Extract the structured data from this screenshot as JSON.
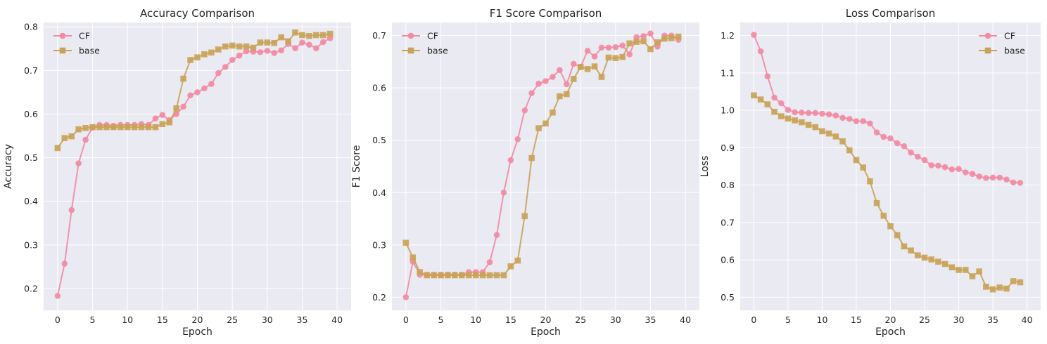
{
  "colors": {
    "background": "#eaeaf2",
    "grid": "#ffffff",
    "cf": "#f28aa2",
    "base": "#c9a257"
  },
  "chart_data": [
    {
      "type": "line",
      "title": "Accuracy Comparison",
      "xlabel": "Epoch",
      "ylabel": "Accuracy",
      "xlim": [
        -2,
        42
      ],
      "ylim": [
        0.15,
        0.81
      ],
      "xticks": [
        0,
        5,
        10,
        15,
        20,
        25,
        30,
        35,
        40
      ],
      "yticks": [
        0.2,
        0.3,
        0.4,
        0.5,
        0.6,
        0.7,
        0.8
      ],
      "grid": true,
      "legend": "top-left",
      "x": [
        0,
        1,
        2,
        3,
        4,
        5,
        6,
        7,
        8,
        9,
        10,
        11,
        12,
        13,
        14,
        15,
        16,
        17,
        18,
        19,
        20,
        21,
        22,
        23,
        24,
        25,
        26,
        27,
        28,
        29,
        30,
        31,
        32,
        33,
        34,
        35,
        36,
        37,
        38,
        39
      ],
      "series": [
        {
          "name": "CF",
          "marker": "circle",
          "values": [
            0.183,
            0.257,
            0.38,
            0.487,
            0.541,
            0.569,
            0.575,
            0.575,
            0.573,
            0.575,
            0.575,
            0.575,
            0.577,
            0.575,
            0.59,
            0.598,
            0.586,
            0.6,
            0.617,
            0.643,
            0.65,
            0.659,
            0.669,
            0.694,
            0.708,
            0.724,
            0.734,
            0.744,
            0.743,
            0.742,
            0.745,
            0.74,
            0.746,
            0.761,
            0.751,
            0.764,
            0.759,
            0.751,
            0.765,
            0.774
          ]
        },
        {
          "name": "base",
          "marker": "square",
          "values": [
            0.522,
            0.545,
            0.549,
            0.565,
            0.568,
            0.57,
            0.57,
            0.57,
            0.57,
            0.57,
            0.57,
            0.57,
            0.57,
            0.57,
            0.57,
            0.577,
            0.581,
            0.613,
            0.681,
            0.724,
            0.73,
            0.737,
            0.741,
            0.748,
            0.755,
            0.757,
            0.755,
            0.755,
            0.752,
            0.764,
            0.764,
            0.763,
            0.776,
            0.767,
            0.787,
            0.781,
            0.779,
            0.781,
            0.781,
            0.784
          ]
        }
      ]
    },
    {
      "type": "line",
      "title": "F1 Score Comparison",
      "xlabel": "Epoch",
      "ylabel": "F1 Score",
      "xlim": [
        -2,
        42
      ],
      "ylim": [
        0.175,
        0.725
      ],
      "xticks": [
        0,
        5,
        10,
        15,
        20,
        25,
        30,
        35,
        40
      ],
      "yticks": [
        0.2,
        0.3,
        0.4,
        0.5,
        0.6,
        0.7
      ],
      "grid": true,
      "legend": "top-left",
      "x": [
        0,
        1,
        2,
        3,
        4,
        5,
        6,
        7,
        8,
        9,
        10,
        11,
        12,
        13,
        14,
        15,
        16,
        17,
        18,
        19,
        20,
        21,
        22,
        23,
        24,
        25,
        26,
        27,
        28,
        29,
        30,
        31,
        32,
        33,
        34,
        35,
        36,
        37,
        38,
        39
      ],
      "series": [
        {
          "name": "CF",
          "marker": "circle",
          "values": [
            0.2,
            0.268,
            0.243,
            0.243,
            0.243,
            0.243,
            0.243,
            0.243,
            0.243,
            0.248,
            0.248,
            0.248,
            0.267,
            0.319,
            0.4,
            0.462,
            0.502,
            0.557,
            0.59,
            0.608,
            0.613,
            0.621,
            0.634,
            0.607,
            0.646,
            0.64,
            0.671,
            0.66,
            0.677,
            0.677,
            0.678,
            0.681,
            0.664,
            0.697,
            0.699,
            0.704,
            0.679,
            0.7,
            0.7,
            0.692
          ]
        },
        {
          "name": "base",
          "marker": "square",
          "values": [
            0.304,
            0.276,
            0.248,
            0.242,
            0.242,
            0.242,
            0.242,
            0.242,
            0.242,
            0.242,
            0.242,
            0.242,
            0.242,
            0.242,
            0.242,
            0.259,
            0.27,
            0.355,
            0.466,
            0.523,
            0.532,
            0.553,
            0.584,
            0.588,
            0.617,
            0.64,
            0.636,
            0.641,
            0.621,
            0.658,
            0.657,
            0.659,
            0.685,
            0.688,
            0.689,
            0.674,
            0.687,
            0.694,
            0.695,
            0.698
          ]
        }
      ]
    },
    {
      "type": "line",
      "title": "Loss Comparison",
      "xlabel": "Epoch",
      "ylabel": "Loss",
      "xlim": [
        -2,
        42
      ],
      "ylim": [
        0.465,
        1.235
      ],
      "xticks": [
        0,
        5,
        10,
        15,
        20,
        25,
        30,
        35,
        40
      ],
      "yticks": [
        0.5,
        0.6,
        0.7,
        0.8,
        0.9,
        1.0,
        1.1,
        1.2
      ],
      "grid": true,
      "legend": "top-right",
      "x": [
        0,
        1,
        2,
        3,
        4,
        5,
        6,
        7,
        8,
        9,
        10,
        11,
        12,
        13,
        14,
        15,
        16,
        17,
        18,
        19,
        20,
        21,
        22,
        23,
        24,
        25,
        26,
        27,
        28,
        29,
        30,
        31,
        32,
        33,
        34,
        35,
        36,
        37,
        38,
        39
      ],
      "series": [
        {
          "name": "CF",
          "marker": "circle",
          "values": [
            1.202,
            1.158,
            1.091,
            1.034,
            1.019,
            1.001,
            0.995,
            0.994,
            0.993,
            0.993,
            0.991,
            0.989,
            0.986,
            0.98,
            0.977,
            0.971,
            0.971,
            0.965,
            0.941,
            0.929,
            0.925,
            0.912,
            0.904,
            0.887,
            0.876,
            0.867,
            0.853,
            0.852,
            0.848,
            0.842,
            0.843,
            0.834,
            0.83,
            0.823,
            0.819,
            0.82,
            0.82,
            0.815,
            0.807,
            0.806
          ]
        },
        {
          "name": "base",
          "marker": "square",
          "values": [
            1.04,
            1.029,
            1.016,
            0.996,
            0.984,
            0.978,
            0.973,
            0.968,
            0.961,
            0.955,
            0.944,
            0.938,
            0.93,
            0.917,
            0.893,
            0.867,
            0.847,
            0.81,
            0.752,
            0.718,
            0.69,
            0.666,
            0.636,
            0.625,
            0.612,
            0.606,
            0.601,
            0.595,
            0.589,
            0.58,
            0.573,
            0.573,
            0.556,
            0.569,
            0.528,
            0.521,
            0.526,
            0.523,
            0.543,
            0.54
          ]
        }
      ]
    }
  ]
}
